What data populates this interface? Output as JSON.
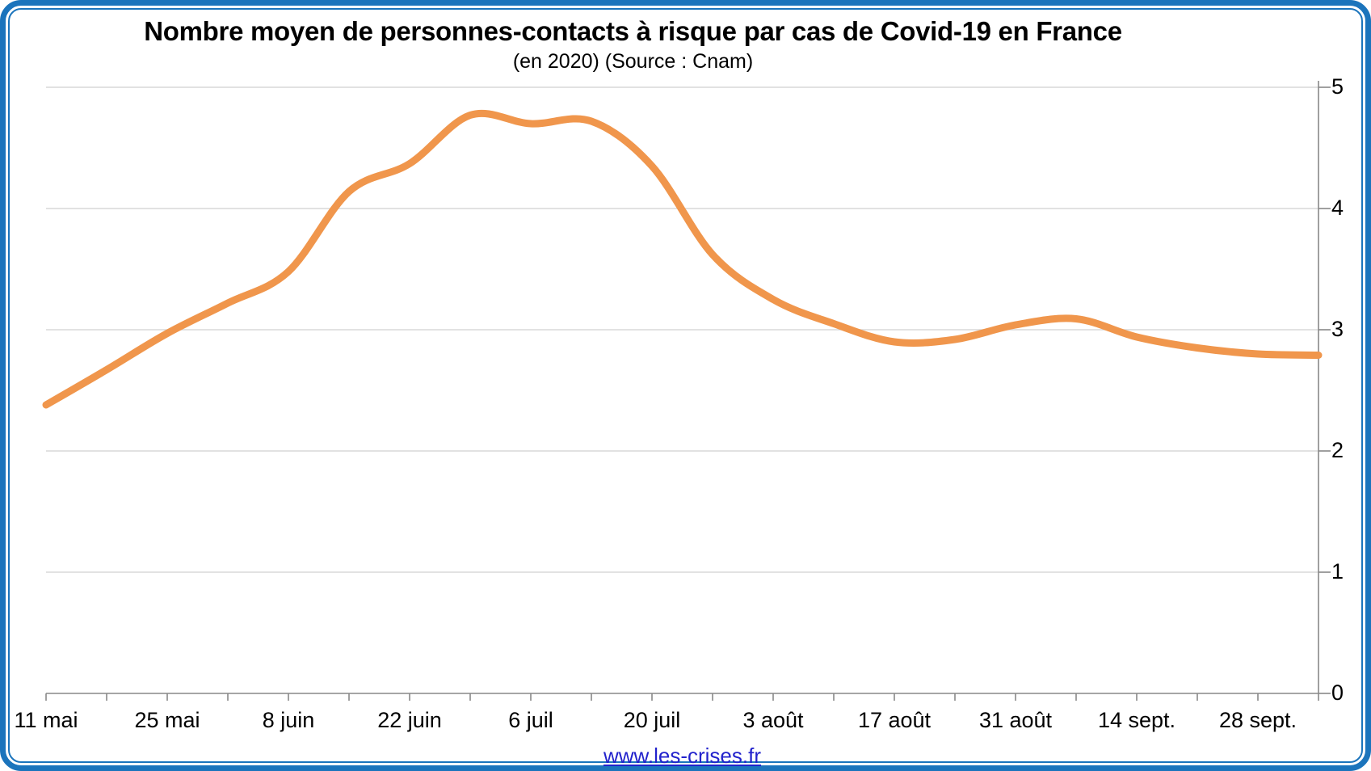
{
  "chart_data": {
    "type": "line",
    "title": "Nombre moyen de personnes-contacts à risque par cas de Covid-19 en France",
    "subtitle": "(en 2020) (Source : Cnam)",
    "xlabel": "",
    "ylabel": "",
    "ylim": [
      0,
      5
    ],
    "yticks": [
      0,
      1,
      2,
      3,
      4,
      5
    ],
    "y_axis_side": "right",
    "grid": "horizontal",
    "legend": "none",
    "x_tick_interval_days": 7,
    "x_label_interval_days": 14,
    "series": [
      {
        "name": "Nombre moyen de personnes-contacts à risque par cas de Covid-19",
        "color": "#F0964C",
        "smooth": true,
        "points": [
          {
            "date": "11 mai",
            "value": 2.38,
            "labeled": true
          },
          {
            "date": "18 mai",
            "value": 2.67,
            "labeled": false
          },
          {
            "date": "25 mai",
            "value": 2.97,
            "labeled": true
          },
          {
            "date": "1 juin",
            "value": 3.22,
            "labeled": false
          },
          {
            "date": "8 juin",
            "value": 3.48,
            "labeled": true
          },
          {
            "date": "15 juin",
            "value": 4.14,
            "labeled": false
          },
          {
            "date": "22 juin",
            "value": 4.37,
            "labeled": true
          },
          {
            "date": "29 juin",
            "value": 4.77,
            "labeled": false
          },
          {
            "date": "6 juil",
            "value": 4.7,
            "labeled": true
          },
          {
            "date": "13 juil",
            "value": 4.72,
            "labeled": false
          },
          {
            "date": "20 juil",
            "value": 4.35,
            "labeled": true
          },
          {
            "date": "27 juil",
            "value": 3.62,
            "labeled": false
          },
          {
            "date": "3 août",
            "value": 3.25,
            "labeled": true
          },
          {
            "date": "10 août",
            "value": 3.05,
            "labeled": false
          },
          {
            "date": "17 août",
            "value": 2.9,
            "labeled": true
          },
          {
            "date": "24 août",
            "value": 2.92,
            "labeled": false
          },
          {
            "date": "31 août",
            "value": 3.04,
            "labeled": true
          },
          {
            "date": "7 sept.",
            "value": 3.09,
            "labeled": false
          },
          {
            "date": "14 sept.",
            "value": 2.94,
            "labeled": true
          },
          {
            "date": "21 sept.",
            "value": 2.85,
            "labeled": false
          },
          {
            "date": "28 sept.",
            "value": 2.8,
            "labeled": true
          },
          {
            "date": "5 oct.",
            "value": 2.79,
            "labeled": false
          }
        ]
      }
    ]
  },
  "footer": {
    "link_text": "www.les-crises.fr"
  },
  "colors": {
    "frame_blue": "#1B74BC",
    "line_orange": "#F0964C",
    "gridline": "#D9D9D9",
    "axis": "#898989",
    "text": "#000000",
    "link_blue": "#2222CC",
    "background": "#FFFFFF"
  }
}
